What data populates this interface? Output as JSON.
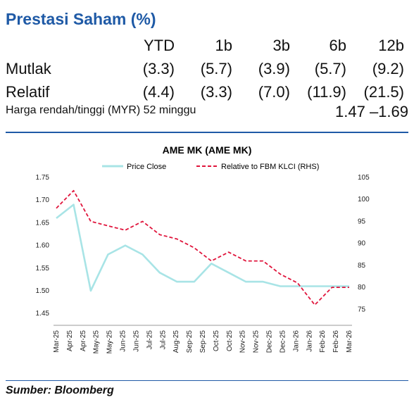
{
  "header": {
    "title": "Prestasi Saham (%)"
  },
  "performance": {
    "columns": [
      "YTD",
      "1b",
      "3b",
      "6b",
      "12b"
    ],
    "rows": [
      {
        "label": "Mutlak",
        "values": [
          "(3.3)",
          "(5.7)",
          "(3.9)",
          "(5.7)",
          "(9.2)"
        ]
      },
      {
        "label": "Relatif",
        "values": [
          "(4.4)",
          "(3.3)",
          "(7.0)",
          "(11.9)",
          "(21.5)"
        ]
      }
    ],
    "range_label": "Harga rendah/tinggi (MYR) 52 minggu",
    "range_value": "1.47 –1.69"
  },
  "source": "Sumber: Bloomberg",
  "colors": {
    "title": "#1f5aa6",
    "price": "#a8e4e6",
    "relative": "#e0153c"
  },
  "chart_data": {
    "type": "line",
    "title": "AME MK (AME MK)",
    "x": [
      "Mar-25",
      "Apr-25",
      "Apr-25",
      "May-25",
      "Jun-25",
      "Jun-25",
      "Jul-25",
      "Aug-25",
      "Sep-25",
      "Sep-25",
      "Oct-25",
      "Nov-25",
      "Nov-25",
      "Dec-25",
      "Jan-26",
      "Jan-26",
      "Feb-26",
      "Mar-26"
    ],
    "series": [
      {
        "name": "Price Close",
        "axis": "left",
        "style": "solid",
        "values": [
          1.66,
          1.69,
          1.5,
          1.58,
          1.6,
          1.58,
          1.54,
          1.52,
          1.52,
          1.56,
          1.54,
          1.52,
          1.52,
          1.51,
          1.51,
          1.51,
          1.51,
          1.51
        ]
      },
      {
        "name": "Relative to FBM KLCI (RHS)",
        "axis": "right",
        "style": "dashed",
        "values": [
          98,
          102,
          95,
          94,
          93,
          95,
          92,
          91,
          89,
          86,
          88,
          86,
          86,
          83,
          81,
          76,
          80,
          80
        ]
      }
    ],
    "y_left": {
      "ticks": [
        "1.75",
        "1.70",
        "1.65",
        "1.60",
        "1.55",
        "1.50",
        "1.45"
      ],
      "ylim": [
        1.43,
        1.75
      ]
    },
    "y_right": {
      "ticks": [
        "105",
        "100",
        "95",
        "90",
        "85",
        "80",
        "75"
      ],
      "ylim": [
        72,
        105
      ]
    },
    "x_tick_labels": [
      "Mar-25",
      "Apr-25",
      "Apr-25",
      "May-25",
      "May-25",
      "Jun-25",
      "Jun-25",
      "Jul-25",
      "Jul-25",
      "Aug-25",
      "Sep-25",
      "Sep-25",
      "Oct-25",
      "Oct-25",
      "Nov-25",
      "Nov-25",
      "Dec-25",
      "Dec-25",
      "Jan-26",
      "Jan-26",
      "Feb-26",
      "Feb-26",
      "Mar-26"
    ],
    "grid": false,
    "legend": "top"
  }
}
